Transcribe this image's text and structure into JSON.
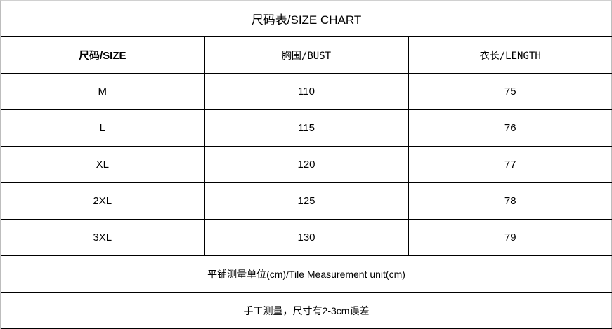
{
  "title": "尺码表/SIZE CHART",
  "headers": [
    "尺码/SIZE",
    "胸围/BUST",
    "衣长/LENGTH"
  ],
  "rows": [
    [
      "M",
      "110",
      "75"
    ],
    [
      "L",
      "115",
      "76"
    ],
    [
      "XL",
      "120",
      "77"
    ],
    [
      "2XL",
      "125",
      "78"
    ],
    [
      "3XL",
      "130",
      "79"
    ]
  ],
  "notes": {
    "unit": "平铺测量单位(cm)/Tile Measurement unit(cm)",
    "tolerance": "手工测量，尺寸有2-3cm误差"
  }
}
